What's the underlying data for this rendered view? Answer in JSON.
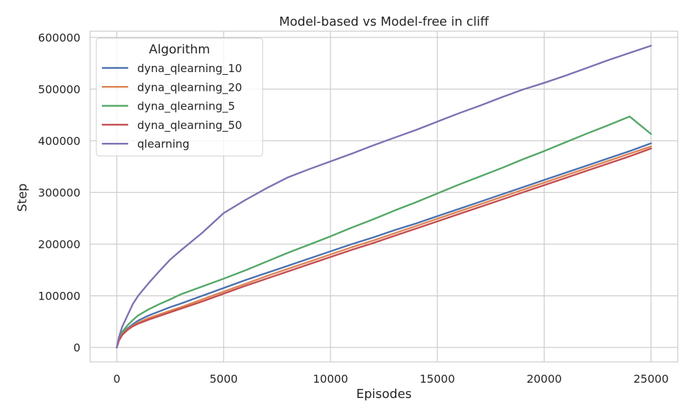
{
  "chart_data": {
    "type": "line",
    "title": "Model-based vs Model-free in cliff",
    "xlabel": "Episodes",
    "ylabel": "Step",
    "xlim": [
      -1250,
      26250
    ],
    "ylim": [
      -28000,
      612000
    ],
    "x_ticks": [
      0,
      5000,
      10000,
      15000,
      20000,
      25000
    ],
    "y_ticks": [
      0,
      100000,
      200000,
      300000,
      400000,
      500000,
      600000
    ],
    "grid": true,
    "legend": {
      "title": "Algorithm",
      "position": "top-left"
    },
    "x": [
      0,
      100,
      250,
      500,
      750,
      1000,
      1500,
      2000,
      2500,
      3000,
      4000,
      5000,
      6000,
      7000,
      8000,
      9000,
      10000,
      11000,
      12000,
      13000,
      14000,
      15000,
      16000,
      17000,
      18000,
      19000,
      20000,
      21000,
      22000,
      23000,
      24000,
      25000
    ],
    "series": [
      {
        "name": "dyna_qlearning_10",
        "color": "#4c72b0",
        "values": [
          0,
          15000,
          26000,
          37000,
          45000,
          52000,
          62000,
          70000,
          78000,
          85000,
          100000,
          115000,
          130000,
          144000,
          158000,
          172000,
          186000,
          200000,
          213000,
          227000,
          240000,
          254000,
          268000,
          282000,
          296000,
          310000,
          324000,
          338000,
          352000,
          366000,
          380000,
          395000
        ]
      },
      {
        "name": "dyna_qlearning_20",
        "color": "#dd8452",
        "values": [
          0,
          14000,
          25000,
          35000,
          42000,
          48000,
          57000,
          64000,
          71000,
          78000,
          93000,
          108000,
          123000,
          138000,
          152000,
          166000,
          180000,
          194000,
          207000,
          221000,
          235000,
          249000,
          263000,
          277000,
          291000,
          305000,
          319000,
          333000,
          347000,
          361000,
          375000,
          389000
        ]
      },
      {
        "name": "dyna_qlearning_5",
        "color": "#55a868",
        "values": [
          0,
          17000,
          30000,
          43000,
          53000,
          62000,
          74000,
          84000,
          93000,
          103000,
          118000,
          133000,
          149000,
          166000,
          183000,
          199000,
          215000,
          232000,
          248000,
          265000,
          281000,
          298000,
          315000,
          331000,
          347000,
          364000,
          380000,
          397000,
          414000,
          430000,
          447000,
          413000
        ]
      },
      {
        "name": "dyna_qlearning_50",
        "color": "#c44e52",
        "values": [
          0,
          13000,
          24000,
          34000,
          41000,
          46000,
          54000,
          61000,
          68000,
          75000,
          89000,
          104000,
          119000,
          133000,
          147000,
          161000,
          175000,
          189000,
          202000,
          216000,
          230000,
          244000,
          258000,
          272000,
          286000,
          300000,
          314000,
          328000,
          342000,
          356000,
          370000,
          385000
        ]
      },
      {
        "name": "qlearning",
        "color": "#8172b3",
        "values": [
          0,
          20000,
          40000,
          62000,
          84000,
          100000,
          125000,
          148000,
          170000,
          188000,
          222000,
          260000,
          285000,
          308000,
          329000,
          345000,
          360000,
          375000,
          391000,
          406000,
          421000,
          437000,
          453000,
          468000,
          484000,
          499000,
          512000,
          526000,
          541000,
          556000,
          570000,
          584000
        ]
      }
    ]
  }
}
